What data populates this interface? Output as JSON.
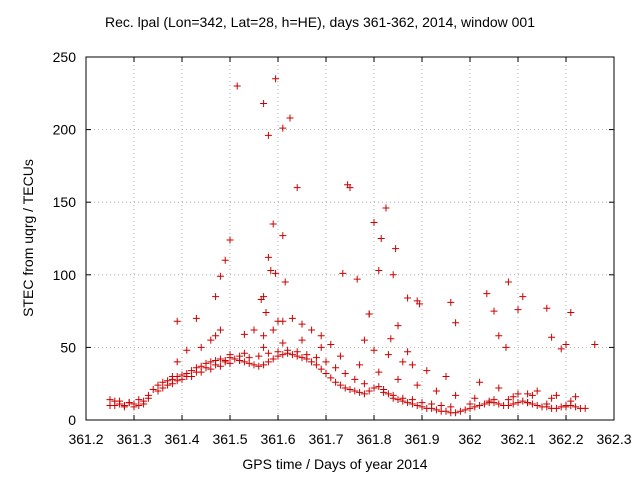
{
  "chart_data": {
    "type": "scatter",
    "title": "Rec. lpal (Lon=342, Lat=28, h=HE), days 361-362, 2014, window 001",
    "xlabel": "GPS time / Days of year 2014",
    "ylabel": "STEC from uqrg / TECUs",
    "xlim": [
      361.2,
      362.3
    ],
    "ylim": [
      0,
      250
    ],
    "xticks": [
      "361.2",
      "361.3",
      "361.4",
      "361.5",
      "361.6",
      "361.7",
      "361.8",
      "361.9",
      "362",
      "362.1",
      "362.2",
      "362.3"
    ],
    "xtick_values": [
      361.2,
      361.3,
      361.4,
      361.5,
      361.6,
      361.7,
      361.8,
      361.9,
      362.0,
      362.1,
      362.2,
      362.3
    ],
    "yticks": [
      "0",
      "50",
      "100",
      "150",
      "200",
      "250"
    ],
    "ytick_values": [
      0,
      50,
      100,
      150,
      200,
      250
    ],
    "marker": "+",
    "color": "#cc0000",
    "series": [
      {
        "name": "STEC",
        "x": [
          361.25,
          361.26,
          361.27,
          361.28,
          361.29,
          361.3,
          361.31,
          361.32,
          361.25,
          361.27,
          361.29,
          361.31,
          361.33,
          361.26,
          361.28,
          361.3,
          361.32,
          361.33,
          361.34,
          361.35,
          361.36,
          361.37,
          361.38,
          361.39,
          361.4,
          361.41,
          361.42,
          361.43,
          361.44,
          361.45,
          361.46,
          361.47,
          361.48,
          361.49,
          361.5,
          361.51,
          361.52,
          361.53,
          361.54,
          361.55,
          361.56,
          361.57,
          361.58,
          361.59,
          361.6,
          361.61,
          361.62,
          361.63,
          361.64,
          361.65,
          361.66,
          361.67,
          361.68,
          361.69,
          361.7,
          361.71,
          361.72,
          361.73,
          361.74,
          361.75,
          361.76,
          361.77,
          361.78,
          361.79,
          361.8,
          361.81,
          361.82,
          361.83,
          361.84,
          361.85,
          361.86,
          361.87,
          361.88,
          361.89,
          361.9,
          361.91,
          361.92,
          361.93,
          361.94,
          361.95,
          361.96,
          361.97,
          361.98,
          361.99,
          362.0,
          362.01,
          362.02,
          362.03,
          362.04,
          362.05,
          362.06,
          362.07,
          362.08,
          362.09,
          362.1,
          362.11,
          362.12,
          362.13,
          362.14,
          362.15,
          362.16,
          362.17,
          362.18,
          362.19,
          362.2,
          362.21,
          362.22,
          362.23,
          362.24,
          361.36,
          361.38,
          361.4,
          361.42,
          361.44,
          361.46,
          361.48,
          361.5,
          361.52,
          361.54,
          361.56,
          361.58,
          361.6,
          361.62,
          361.64,
          361.66,
          361.68,
          361.7,
          361.72,
          361.74,
          361.76,
          361.78,
          361.8,
          361.82,
          361.84,
          361.86,
          361.88,
          361.9,
          361.92,
          361.94,
          361.96,
          362.0,
          362.04,
          362.08,
          362.12,
          362.16,
          362.2,
          361.35,
          361.37,
          361.39,
          361.41,
          361.43,
          361.45,
          361.47,
          361.49,
          361.53,
          361.57,
          361.61,
          361.65,
          361.69,
          361.73,
          361.77,
          361.81,
          361.85,
          361.89,
          361.93,
          361.97,
          362.01,
          362.05,
          362.09,
          362.13,
          362.17,
          362.21,
          361.38,
          361.39,
          361.41,
          361.44,
          361.46,
          361.47,
          361.48,
          361.5,
          361.53,
          361.55,
          361.57,
          361.59,
          361.61,
          361.63,
          361.65,
          361.67,
          361.69,
          361.71,
          361.78,
          361.8,
          361.83,
          361.86,
          361.88,
          361.91,
          361.95,
          362.02,
          362.06,
          362.1,
          362.14,
          362.18,
          362.22,
          361.39,
          361.43,
          361.47,
          361.48,
          361.49,
          361.5,
          361.52,
          361.565,
          361.57,
          361.575,
          361.58,
          361.585,
          361.59,
          361.595,
          361.6,
          361.61,
          361.615,
          361.625,
          361.64,
          361.735,
          361.745,
          361.765,
          361.79,
          361.8,
          361.815,
          361.825,
          361.84,
          361.845,
          361.87,
          361.89,
          361.895,
          361.97,
          362.035,
          362.06,
          362.08,
          362.1,
          362.11,
          362.16,
          362.17,
          362.21,
          362.26,
          361.515,
          361.57,
          361.58,
          361.595,
          361.61,
          361.75,
          361.79,
          361.81,
          361.835,
          361.85,
          361.87,
          361.96,
          362.05,
          362.075,
          362.12,
          362.19,
          362.2
        ],
        "y": [
          14,
          13,
          11,
          10,
          12,
          9,
          10,
          11,
          10,
          13,
          12,
          14,
          15,
          10,
          9,
          11,
          13,
          17,
          21,
          24,
          26,
          27,
          28,
          30,
          31,
          32,
          34,
          36,
          37,
          39,
          40,
          41,
          42,
          40,
          43,
          42,
          41,
          40,
          39,
          38,
          37,
          38,
          40,
          42,
          44,
          45,
          46,
          45,
          44,
          43,
          42,
          40,
          38,
          35,
          32,
          29,
          26,
          24,
          22,
          21,
          20,
          19,
          18,
          20,
          22,
          23,
          21,
          18,
          15,
          14,
          13,
          12,
          11,
          10,
          9,
          8,
          8,
          7,
          6,
          6,
          5,
          5,
          6,
          7,
          8,
          9,
          10,
          11,
          12,
          12,
          11,
          10,
          10,
          11,
          12,
          13,
          12,
          11,
          10,
          9,
          9,
          8,
          8,
          9,
          9,
          10,
          9,
          8,
          8,
          22,
          25,
          28,
          30,
          33,
          35,
          37,
          39,
          41,
          43,
          44,
          46,
          47,
          48,
          47,
          45,
          43,
          40,
          36,
          32,
          28,
          25,
          22,
          19,
          17,
          15,
          14,
          12,
          11,
          10,
          9,
          11,
          13,
          14,
          12,
          11,
          10,
          20,
          24,
          27,
          30,
          33,
          36,
          38,
          41,
          46,
          50,
          53,
          55,
          50,
          44,
          38,
          33,
          28,
          24,
          20,
          17,
          15,
          14,
          16,
          17,
          15,
          13,
          30,
          40,
          48,
          50,
          55,
          58,
          62,
          45,
          59,
          62,
          58,
          62,
          68,
          70,
          66,
          62,
          58,
          52,
          55,
          48,
          45,
          40,
          38,
          34,
          30,
          26,
          22,
          18,
          20,
          17,
          16,
          68,
          70,
          85,
          99,
          110,
          124,
          44,
          83,
          85,
          74,
          196,
          103,
          135,
          101,
          68,
          127,
          95,
          208,
          160,
          101,
          162,
          97,
          73,
          136,
          125,
          146,
          100,
          118,
          84,
          82,
          80,
          67,
          87,
          58,
          95,
          76,
          85,
          77,
          57,
          74,
          52,
          230,
          218,
          112,
          235,
          201,
          160,
          73,
          103,
          56,
          65,
          47,
          81,
          75,
          50,
          18,
          49,
          52
        ]
      }
    ]
  }
}
